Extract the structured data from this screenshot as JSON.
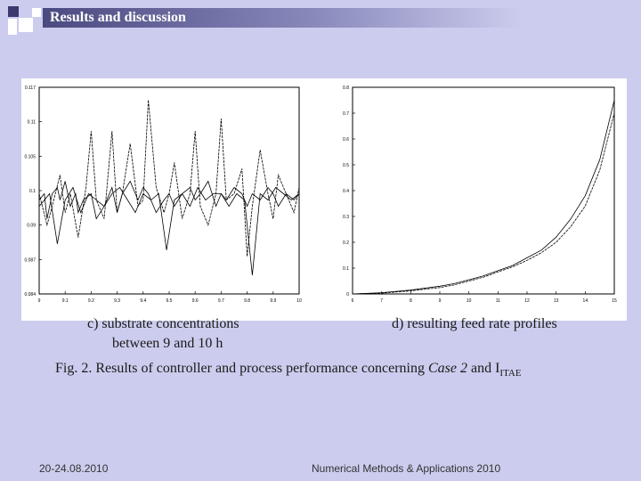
{
  "slide": {
    "title": "Results and discussion",
    "caption_left_1": "c) substrate concentrations",
    "caption_left_2": "between 9 and 10 h",
    "caption_right": "d) resulting feed rate profiles",
    "fig_caption_prefix": "Fig. 2.  Results of controller and process performance concerning ",
    "fig_caption_case": "Case 2",
    "fig_caption_and": " and I",
    "fig_caption_sub": "ITAE",
    "footer_left": "20-24.08.2010",
    "footer_right": "Numerical Methods & Applications 2010"
  },
  "colors": {
    "background": "#ccccee",
    "title_bar_dark": "#4a4a80",
    "plot_bg": "#ffffff",
    "ink": "#000000"
  },
  "chart_data": [
    {
      "type": "line",
      "xlim": [
        9,
        10
      ],
      "ylim": [
        0.084,
        0.117
      ],
      "x_ticks": [
        "9",
        "9.1",
        "9.2",
        "9.3",
        "9.4",
        "9.5",
        "9.6",
        "9.7",
        "9.8",
        "9.9",
        "10"
      ],
      "y_ticks": [
        "0.084",
        "0.087",
        "0.09",
        "0.1",
        "0.105",
        "0.11",
        "0.117"
      ],
      "series": [
        {
          "x": [
            9.0,
            9.02,
            9.03,
            9.05,
            9.07,
            9.08,
            9.1,
            9.12,
            9.14,
            9.15,
            9.17,
            9.2,
            9.22,
            9.25,
            9.28,
            9.3,
            9.32,
            9.35,
            9.38,
            9.4,
            9.42,
            9.45,
            9.48,
            9.5,
            9.52,
            9.55,
            9.58,
            9.6,
            9.62,
            9.65,
            9.68,
            9.7,
            9.72,
            9.75,
            9.78,
            9.8,
            9.82,
            9.85,
            9.88,
            9.9,
            9.92,
            9.95,
            9.98,
            10.0
          ],
          "y": [
            0.099,
            0.1,
            0.096,
            0.1,
            0.101,
            0.099,
            0.102,
            0.098,
            0.1,
            0.097,
            0.099,
            0.1,
            0.096,
            0.098,
            0.101,
            0.097,
            0.1,
            0.102,
            0.099,
            0.101,
            0.1,
            0.097,
            0.099,
            0.1,
            0.098,
            0.1,
            0.101,
            0.099,
            0.1,
            0.102,
            0.098,
            0.1,
            0.099,
            0.101,
            0.1,
            0.098,
            0.1,
            0.099,
            0.101,
            0.1,
            0.098,
            0.1,
            0.099,
            0.1
          ]
        },
        {
          "x": [
            9.0,
            9.03,
            9.05,
            9.08,
            9.1,
            9.12,
            9.15,
            9.18,
            9.2,
            9.22,
            9.25,
            9.28,
            9.3,
            9.32,
            9.35,
            9.38,
            9.4,
            9.42,
            9.45,
            9.48,
            9.5,
            9.52,
            9.55,
            9.58,
            9.6,
            9.62,
            9.65,
            9.68,
            9.7,
            9.72,
            9.75,
            9.78,
            9.8,
            9.82,
            9.85,
            9.88,
            9.9,
            9.92,
            9.95,
            9.98,
            10.0
          ],
          "y": [
            0.1,
            0.095,
            0.098,
            0.103,
            0.097,
            0.1,
            0.093,
            0.101,
            0.11,
            0.099,
            0.096,
            0.11,
            0.097,
            0.1,
            0.108,
            0.098,
            0.099,
            0.115,
            0.101,
            0.097,
            0.1,
            0.105,
            0.096,
            0.1,
            0.11,
            0.098,
            0.095,
            0.1,
            0.112,
            0.099,
            0.1,
            0.104,
            0.09,
            0.098,
            0.107,
            0.1,
            0.096,
            0.103,
            0.1,
            0.097,
            0.101
          ]
        },
        {
          "x": [
            9.0,
            9.04,
            9.07,
            9.1,
            9.13,
            9.16,
            9.19,
            9.22,
            9.25,
            9.28,
            9.31,
            9.34,
            9.37,
            9.4,
            9.43,
            9.46,
            9.49,
            9.52,
            9.55,
            9.58,
            9.61,
            9.64,
            9.67,
            9.7,
            9.73,
            9.76,
            9.79,
            9.82,
            9.85,
            9.88,
            9.91,
            9.94,
            9.97,
            10.0
          ],
          "y": [
            0.098,
            0.1,
            0.092,
            0.099,
            0.101,
            0.097,
            0.1,
            0.099,
            0.098,
            0.1,
            0.101,
            0.099,
            0.097,
            0.1,
            0.099,
            0.1,
            0.091,
            0.099,
            0.1,
            0.098,
            0.101,
            0.099,
            0.1,
            0.1,
            0.098,
            0.1,
            0.099,
            0.087,
            0.1,
            0.099,
            0.101,
            0.1,
            0.099,
            0.1
          ]
        }
      ]
    },
    {
      "type": "line",
      "xlim": [
        6,
        15
      ],
      "ylim": [
        0,
        0.8
      ],
      "x_ticks": [
        "6",
        "7",
        "8",
        "9",
        "10",
        "11",
        "12",
        "13",
        "14",
        "15"
      ],
      "y_ticks": [
        "0",
        "0.1",
        "0.2",
        "0.3",
        "0.4",
        "0.5",
        "0.6",
        "0.7",
        "0.8"
      ],
      "series": [
        {
          "x": [
            6.0,
            7.0,
            8.0,
            9.0,
            9.5,
            10.0,
            10.5,
            11.0,
            11.5,
            12.0,
            12.5,
            13.0,
            13.5,
            14.0,
            14.5,
            15.0
          ],
          "y": [
            0.0,
            0.005,
            0.015,
            0.03,
            0.04,
            0.055,
            0.07,
            0.09,
            0.11,
            0.14,
            0.17,
            0.22,
            0.29,
            0.38,
            0.52,
            0.75
          ]
        },
        {
          "x": [
            6.0,
            7.0,
            8.0,
            9.0,
            9.5,
            10.0,
            10.5,
            11.0,
            11.5,
            12.0,
            12.5,
            13.0,
            13.5,
            14.0,
            14.5,
            15.0
          ],
          "y": [
            0.0,
            0.003,
            0.012,
            0.025,
            0.035,
            0.05,
            0.065,
            0.085,
            0.105,
            0.13,
            0.16,
            0.2,
            0.26,
            0.34,
            0.48,
            0.7
          ]
        }
      ]
    }
  ]
}
